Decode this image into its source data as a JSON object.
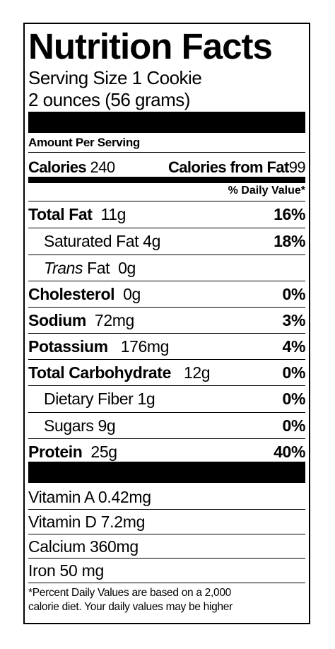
{
  "title": "Nutrition Facts",
  "serving": {
    "size_line": "Serving Size 1 Cookie",
    "weight_line": "2 ounces (56 grams)"
  },
  "amount_per_serving": "Amount Per Serving",
  "calories": {
    "label": "Calories",
    "value": "240",
    "fat_label": "Calories from Fat",
    "fat_value": "99"
  },
  "daily_value_header": "% Daily Value*",
  "nutrients": [
    {
      "name": "Total Fat",
      "amount": "11g",
      "dv": "16%"
    },
    {
      "name": "Saturated Fat",
      "amount": "4g",
      "dv": "18%"
    },
    {
      "name_italic": "Trans",
      "name_rest": "Fat",
      "amount": "0g",
      "dv": ""
    },
    {
      "name": "Cholesterol",
      "amount": "0g",
      "dv": "0%"
    },
    {
      "name": "Sodium",
      "amount": "72mg",
      "dv": "3%"
    },
    {
      "name": "Potassium",
      "amount": "176mg",
      "dv": "4%"
    },
    {
      "name": "Total Carbohydrate",
      "amount": "12g",
      "dv": "0%"
    },
    {
      "name": "Dietary Fiber",
      "amount": "1g",
      "dv": "0%"
    },
    {
      "name": "Sugars",
      "amount": "9g",
      "dv": "0%"
    },
    {
      "name": "Protein",
      "amount": "25g",
      "dv": "40%"
    }
  ],
  "vitamins": [
    "Vitamin A 0.42mg",
    "Vitamin D 7.2mg",
    "Calcium 360mg",
    "Iron 50 mg"
  ],
  "footnote": {
    "line1": "*Percent Daily Values are based on a 2,000",
    "line2": "calorie diet. Your daily values may be higher"
  }
}
